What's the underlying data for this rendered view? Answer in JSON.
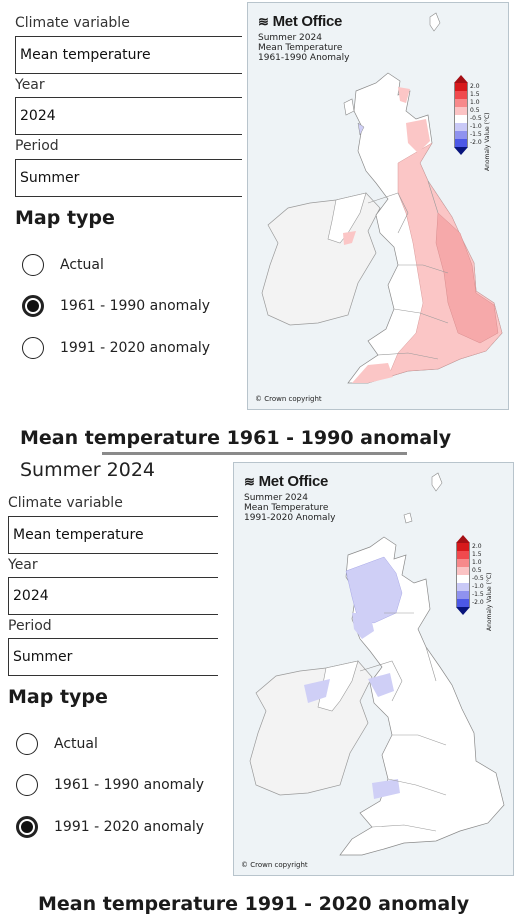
{
  "top": {
    "climate_label": "Climate variable",
    "climate_value": "Mean temperature",
    "year_label": "Year",
    "year_value": "2024",
    "period_label": "Period",
    "period_value": "Summer",
    "map_type_heading": "Map type",
    "options": [
      "Actual",
      "1961 - 1990 anomaly",
      "1991 - 2020 anomaly"
    ],
    "selected_index": 1,
    "map": {
      "logo": "Met Office",
      "line1": "Summer 2024",
      "line2": "Mean Temperature",
      "line3": "1961-1990 Anomaly",
      "copyright": "© Crown copyright"
    },
    "caption": "Mean temperature 1961 - 1990 anomaly"
  },
  "bottom": {
    "subtitle": "Summer 2024",
    "climate_label": "Climate variable",
    "climate_value": "Mean temperature",
    "year_label": "Year",
    "year_value": "2024",
    "period_label": "Period",
    "period_value": "Summer",
    "map_type_heading": "Map type",
    "options": [
      "Actual",
      "1961 - 1990 anomaly",
      "1991 - 2020 anomaly"
    ],
    "selected_index": 2,
    "map": {
      "logo": "Met Office",
      "line1": "Summer 2024",
      "line2": "Mean Temperature",
      "line3": "1991-2020 Anomaly",
      "copyright": "© Crown copyright"
    },
    "caption": "Mean temperature 1991 - 2020 anomaly"
  },
  "legend": {
    "axis_label": "Anomaly Value (°C)",
    "ticks": [
      "2.0",
      "1.5",
      "1.0",
      "0.5",
      "-0.5",
      "-1.0",
      "-1.5",
      "-2.0"
    ],
    "colors": [
      "#d7191c",
      "#f04a4e",
      "#f7898b",
      "#fbc3c4",
      "#ffffff",
      "#c9c9f7",
      "#8f92ef",
      "#4c58e6",
      "#1c2fd8"
    ]
  },
  "colors": {
    "land": "#ffffff",
    "ireland": "#f3f3f3",
    "sea": "#eef3f6",
    "warm_light": "#fbc6c6",
    "warm_mid": "#f6a9aa",
    "cool_light": "#cfcff6"
  }
}
